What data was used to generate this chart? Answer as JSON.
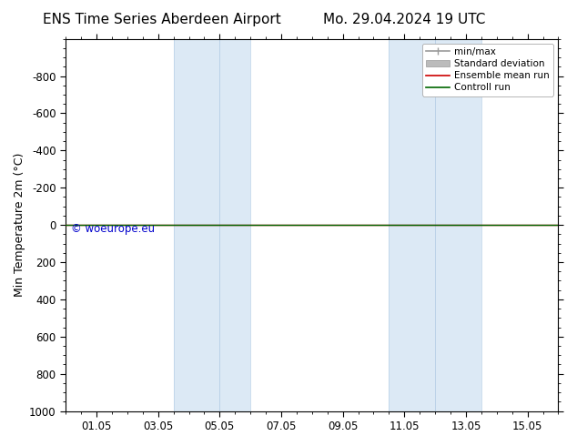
{
  "title_left": "ENS Time Series Aberdeen Airport",
  "title_right": "Mo. 29.04.2024 19 UTC",
  "ylabel": "Min Temperature 2m (°C)",
  "ylim": [
    -1000,
    1000
  ],
  "yticks": [
    -800,
    -600,
    -400,
    -200,
    0,
    200,
    400,
    600,
    800,
    1000
  ],
  "xtick_labels": [
    "01.05",
    "03.05",
    "05.05",
    "07.05",
    "09.05",
    "11.05",
    "13.05",
    "15.05"
  ],
  "xtick_positions": [
    1,
    3,
    5,
    7,
    9,
    11,
    13,
    15
  ],
  "xlim": [
    0,
    16
  ],
  "shaded_regions": [
    [
      3.5,
      5.0
    ],
    [
      5.0,
      6.0
    ],
    [
      10.5,
      12.0
    ],
    [
      12.0,
      13.5
    ]
  ],
  "shaded_color": "#dce9f5",
  "shaded_edge_color": "#b8d0e8",
  "control_run_y": 0,
  "control_run_color": "#006600",
  "ensemble_mean_color": "#cc0000",
  "watermark": "© woeurope.eu",
  "watermark_color": "#0000cc",
  "background_color": "#ffffff",
  "plot_bg_color": "#ffffff",
  "legend_entries": [
    "min/max",
    "Standard deviation",
    "Ensemble mean run",
    "Controll run"
  ],
  "legend_line_colors": [
    "#999999",
    "#bbbbbb",
    "#cc0000",
    "#006600"
  ],
  "title_fontsize": 11,
  "axis_fontsize": 9,
  "tick_fontsize": 8.5
}
